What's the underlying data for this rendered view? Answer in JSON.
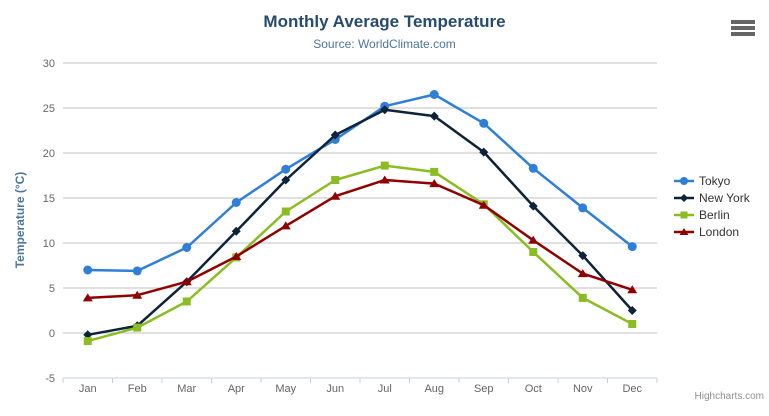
{
  "chart_data": {
    "type": "line",
    "title": "Monthly Average Temperature",
    "subtitle": "Source: WorldClimate.com",
    "xlabel": "",
    "ylabel": "Temperature (°C)",
    "categories": [
      "Jan",
      "Feb",
      "Mar",
      "Apr",
      "May",
      "Jun",
      "Jul",
      "Aug",
      "Sep",
      "Oct",
      "Nov",
      "Dec"
    ],
    "ylim": [
      -5,
      30
    ],
    "yticks": [
      -5,
      0,
      5,
      10,
      15,
      20,
      25,
      30
    ],
    "grid": true,
    "legend_position": "right",
    "series": [
      {
        "name": "Tokyo",
        "color": "#2f7ed8",
        "marker": "circle",
        "values": [
          7.0,
          6.9,
          9.5,
          14.5,
          18.2,
          21.5,
          25.2,
          26.5,
          23.3,
          18.3,
          13.9,
          9.6
        ]
      },
      {
        "name": "New York",
        "color": "#0d233a",
        "marker": "diamond",
        "values": [
          -0.2,
          0.8,
          5.7,
          11.3,
          17.0,
          22.0,
          24.8,
          24.1,
          20.1,
          14.1,
          8.6,
          2.5
        ]
      },
      {
        "name": "Berlin",
        "color": "#8bbc21",
        "marker": "square",
        "values": [
          -0.9,
          0.6,
          3.5,
          8.4,
          13.5,
          17.0,
          18.6,
          17.9,
          14.3,
          9.0,
          3.9,
          1.0
        ]
      },
      {
        "name": "London",
        "color": "#910000",
        "marker": "triangle",
        "values": [
          3.9,
          4.2,
          5.7,
          8.5,
          11.9,
          15.2,
          17.0,
          16.6,
          14.2,
          10.3,
          6.6,
          4.8
        ]
      }
    ]
  },
  "credits": {
    "label": "Highcharts.com"
  },
  "colors": {
    "title": "#274b6d",
    "subtitle": "#4d759e",
    "axis_title": "#4d759e",
    "tick_label": "#666666",
    "grid": "#c0c0c0",
    "axis_line": "#c0d0e0",
    "legend_text": "#333333",
    "credits": "#909090",
    "context_button": "#666666"
  }
}
